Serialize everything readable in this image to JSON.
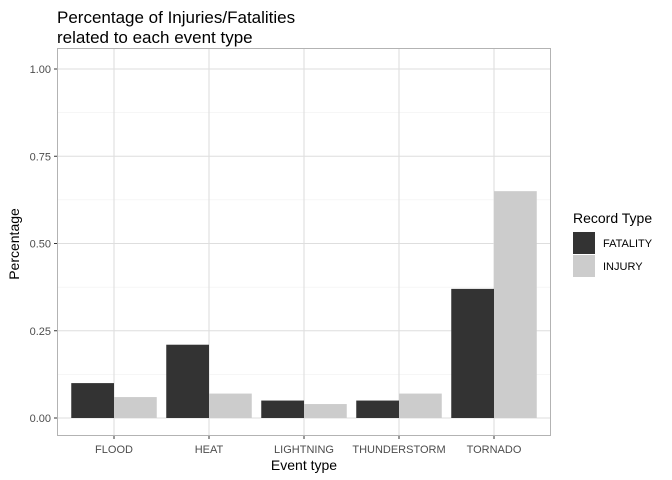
{
  "chart_data": {
    "type": "bar",
    "title_lines": [
      "Percentage of Injuries/Fatalities",
      "related to each event type"
    ],
    "xlabel": "Event type",
    "ylabel": "Percentage",
    "categories": [
      "FLOOD",
      "HEAT",
      "LIGHTNING",
      "THUNDERSTORM",
      "TORNADO"
    ],
    "series": [
      {
        "name": "FATALITY",
        "values": [
          0.1,
          0.21,
          0.05,
          0.05,
          0.37
        ],
        "color": "#333333"
      },
      {
        "name": "INJURY",
        "values": [
          0.06,
          0.07,
          0.04,
          0.07,
          0.65
        ],
        "color": "#cccccc"
      }
    ],
    "ylim": [
      0,
      1
    ],
    "yticks": [
      "0.00",
      "0.25",
      "0.50",
      "0.75",
      "1.00"
    ],
    "ytick_values": [
      0,
      0.25,
      0.5,
      0.75,
      1.0
    ],
    "grid": true,
    "legend": {
      "title": "Record Type",
      "placement": "right"
    },
    "colors": {
      "panel_border": "#b3b3b3",
      "grid_major": "#dedede",
      "grid_minor": "#ededed"
    }
  }
}
